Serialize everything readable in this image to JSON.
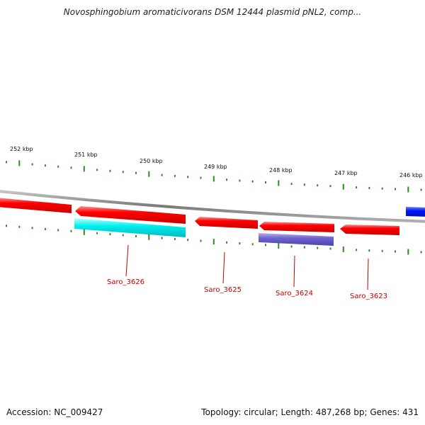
{
  "title": "Novosphingobium aromaticivorans DSM 12444 plasmid pNL2, comp...",
  "footer": {
    "accession": "Accession: NC_009427",
    "summary": "Topology: circular; Length: 487,268 bp; Genes: 431"
  },
  "colors": {
    "backbone": "#8a8a8a",
    "cds": "#ff0000",
    "cds_alt": "#00e5e5",
    "cds_purple": "#6f63cf",
    "cds_blue": "#0018ff",
    "tick": "#2e8b22",
    "label": "#c40000"
  },
  "ruler": {
    "labels": [
      {
        "text": "252 kbp",
        "pos": 252
      },
      {
        "text": "251 kbp",
        "pos": 251
      },
      {
        "text": "250 kbp",
        "pos": 250
      },
      {
        "text": "249 kbp",
        "pos": 249
      },
      {
        "text": "248 kbp",
        "pos": 248
      },
      {
        "text": "247 kbp",
        "pos": 247
      },
      {
        "text": "246 kbp",
        "pos": 246
      }
    ]
  },
  "genes": [
    {
      "id": "saro-3626",
      "label": "Saro_3626"
    },
    {
      "id": "saro-3625",
      "label": "Saro_3625"
    },
    {
      "id": "saro-3624",
      "label": "Saro_3624"
    },
    {
      "id": "saro-3623",
      "label": "Saro_3623"
    }
  ]
}
